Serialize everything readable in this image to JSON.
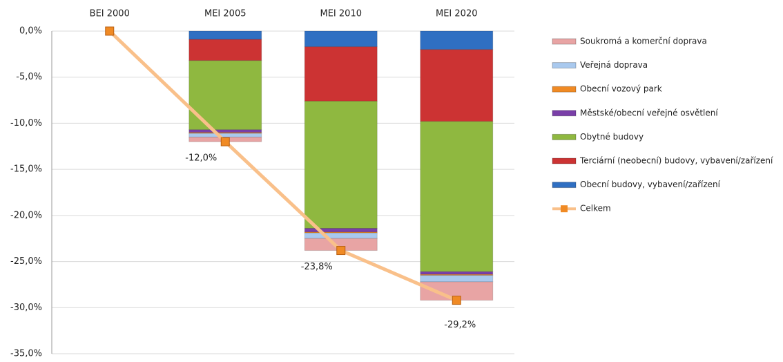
{
  "chart_data": {
    "type": "bar",
    "stacked": true,
    "categories": [
      "BEI 2000",
      "MEI 2005",
      "MEI 2010",
      "MEI 2020"
    ],
    "series": [
      {
        "name": "Soukromá a komerční doprava",
        "color": "#e8a4a4",
        "values": [
          0,
          -0.5,
          -1.3,
          -2.0
        ]
      },
      {
        "name": "Veřejná doprava",
        "color": "#a9c9ee",
        "values": [
          0,
          -0.4,
          -0.6,
          -0.7
        ]
      },
      {
        "name": "Obecní vozový park",
        "color": "#f08a24",
        "values": [
          0,
          -0.1,
          -0.1,
          -0.1
        ]
      },
      {
        "name": "Městské/obecní veřejné osvětlení",
        "color": "#7a3fa8",
        "values": [
          0,
          -0.3,
          -0.4,
          -0.3
        ]
      },
      {
        "name": "Obytné budovy",
        "color": "#8fb840",
        "values": [
          0,
          -7.5,
          -13.8,
          -16.3
        ]
      },
      {
        "name": "Terciární (neobecní) budovy, vybavení/zařízení",
        "color": "#cc3333",
        "values": [
          0,
          -2.3,
          -5.9,
          -7.8
        ]
      },
      {
        "name": "Obecní budovy, vybavení/zařízení",
        "color": "#2f6fc2",
        "values": [
          0,
          -0.9,
          -1.7,
          -2.0
        ]
      },
      {
        "name": "Celkem",
        "type": "line",
        "color": "#f9c08a",
        "marker_color": "#f08a24",
        "values": [
          0,
          -12.0,
          -23.8,
          -29.2
        ],
        "value_labels": [
          null,
          "-12,0%",
          "-23,8%",
          "-29,2%"
        ]
      }
    ],
    "ylim": [
      -35,
      0
    ],
    "yticks": [
      {
        "value": 0,
        "label": "0,0%"
      },
      {
        "value": -5,
        "label": "-5,0%"
      },
      {
        "value": -10,
        "label": "-10,0%"
      },
      {
        "value": -15,
        "label": "-15,0%"
      },
      {
        "value": -20,
        "label": "-20,0%"
      },
      {
        "value": -25,
        "label": "-25,0%"
      },
      {
        "value": -30,
        "label": "-30,0%"
      },
      {
        "value": -35,
        "label": "-35,0%"
      }
    ],
    "grid": true,
    "legend": "right"
  }
}
